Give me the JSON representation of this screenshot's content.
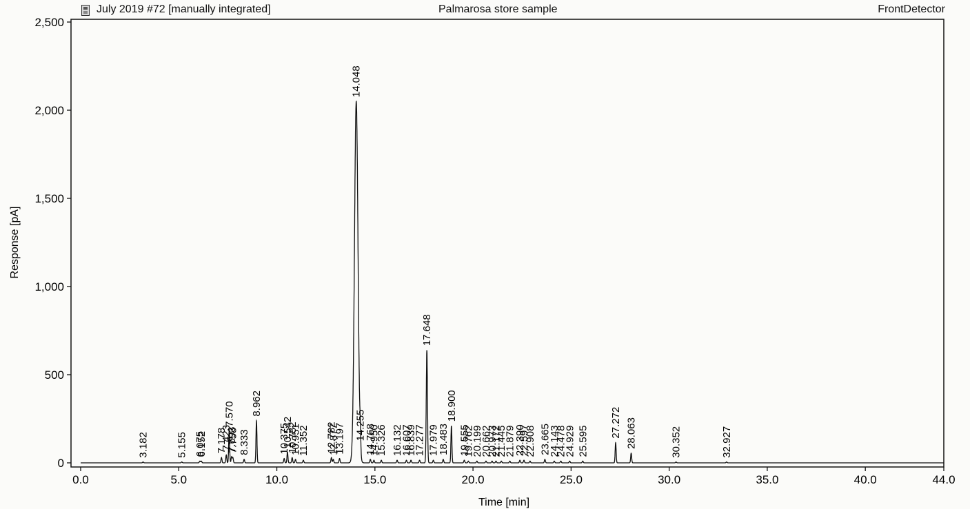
{
  "header": {
    "left": "July 2019 #72 [manually integrated]",
    "center": "Palmarosa  store sample",
    "right": "FrontDetector",
    "icon": "document-icon"
  },
  "chart_data": {
    "type": "line",
    "xlabel": "Time [min]",
    "ylabel": "Response [pA]",
    "xlim": [
      0,
      44
    ],
    "ylim": [
      0,
      2500
    ],
    "xticks": [
      "0.0",
      "5.0",
      "10.0",
      "15.0",
      "20.0",
      "25.0",
      "30.0",
      "35.0",
      "40.0",
      "44.0"
    ],
    "xtick_values": [
      0,
      5,
      10,
      15,
      20,
      25,
      30,
      35,
      40,
      44
    ],
    "yticks": [
      "0",
      "500",
      "1,000",
      "1,500",
      "2,000",
      "2,500"
    ],
    "ytick_values": [
      0,
      500,
      1000,
      1500,
      2000,
      2500
    ],
    "baseline": 0,
    "grid": false,
    "peaks": [
      {
        "rt": 3.182,
        "label": "3.182",
        "height": 5
      },
      {
        "rt": 5.155,
        "label": "5.155",
        "height": 5
      },
      {
        "rt": 6.075,
        "label": "6.075",
        "height": 10
      },
      {
        "rt": 6.152,
        "label": "6.152",
        "height": 10
      },
      {
        "rt": 7.178,
        "label": "7.178",
        "height": 30
      },
      {
        "rt": 7.423,
        "label": "7.423",
        "height": 45
      },
      {
        "rt": 7.57,
        "label": "7.570",
        "height": 180
      },
      {
        "rt": 7.693,
        "label": "7.693",
        "height": 35
      },
      {
        "rt": 7.758,
        "label": "7.758",
        "height": 30
      },
      {
        "rt": 8.333,
        "label": "8.333",
        "height": 20
      },
      {
        "rt": 8.962,
        "label": "8.962",
        "height": 240
      },
      {
        "rt": 10.375,
        "label": "10.375",
        "height": 25
      },
      {
        "rt": 10.542,
        "label": "10.542",
        "height": 60
      },
      {
        "rt": 10.782,
        "label": "10.782",
        "height": 30
      },
      {
        "rt": 10.951,
        "label": "10.951",
        "height": 20
      },
      {
        "rt": 11.352,
        "label": "11.352",
        "height": 15
      },
      {
        "rt": 12.782,
        "label": "12.782",
        "height": 30
      },
      {
        "rt": 12.877,
        "label": "12.877",
        "height": 20
      },
      {
        "rt": 13.197,
        "label": "13.197",
        "height": 25
      },
      {
        "rt": 14.048,
        "label": "14.048",
        "height": 2050
      },
      {
        "rt": 14.255,
        "label": "14.255",
        "height": 100
      },
      {
        "rt": 14.768,
        "label": "14.768",
        "height": 20
      },
      {
        "rt": 14.95,
        "label": "14.950",
        "height": 15
      },
      {
        "rt": 15.326,
        "label": "15.326",
        "height": 15
      },
      {
        "rt": 16.132,
        "label": "16.132",
        "height": 15
      },
      {
        "rt": 16.607,
        "label": "16.607",
        "height": 15
      },
      {
        "rt": 16.839,
        "label": "16.839",
        "height": 15
      },
      {
        "rt": 17.277,
        "label": "17.277",
        "height": 15
      },
      {
        "rt": 17.648,
        "label": "17.648",
        "height": 640
      },
      {
        "rt": 17.979,
        "label": "17.979",
        "height": 15
      },
      {
        "rt": 18.483,
        "label": "18.483",
        "height": 20
      },
      {
        "rt": 18.9,
        "label": "18.900",
        "height": 210
      },
      {
        "rt": 19.555,
        "label": "19.555",
        "height": 15
      },
      {
        "rt": 19.762,
        "label": "19.762",
        "height": 10
      },
      {
        "rt": 20.199,
        "label": "20.199",
        "height": 10
      },
      {
        "rt": 20.662,
        "label": "20.662",
        "height": 10
      },
      {
        "rt": 20.973,
        "label": "20.973",
        "height": 10
      },
      {
        "rt": 21.172,
        "label": "21.172",
        "height": 10
      },
      {
        "rt": 21.445,
        "label": "21.445",
        "height": 10
      },
      {
        "rt": 21.879,
        "label": "21.879",
        "height": 10
      },
      {
        "rt": 22.39,
        "label": "22.390",
        "height": 15
      },
      {
        "rt": 22.597,
        "label": "22.597",
        "height": 15
      },
      {
        "rt": 22.908,
        "label": "22.908",
        "height": 10
      },
      {
        "rt": 23.665,
        "label": "23.665",
        "height": 20
      },
      {
        "rt": 24.143,
        "label": "24.143",
        "height": 10
      },
      {
        "rt": 24.478,
        "label": "24.478",
        "height": 10
      },
      {
        "rt": 24.929,
        "label": "24.929",
        "height": 10
      },
      {
        "rt": 25.595,
        "label": "25.595",
        "height": 10
      },
      {
        "rt": 27.272,
        "label": "27.272",
        "height": 115
      },
      {
        "rt": 28.063,
        "label": "28.063",
        "height": 55
      },
      {
        "rt": 30.352,
        "label": "30.352",
        "height": 5
      },
      {
        "rt": 32.927,
        "label": "32.927",
        "height": 5
      }
    ]
  }
}
